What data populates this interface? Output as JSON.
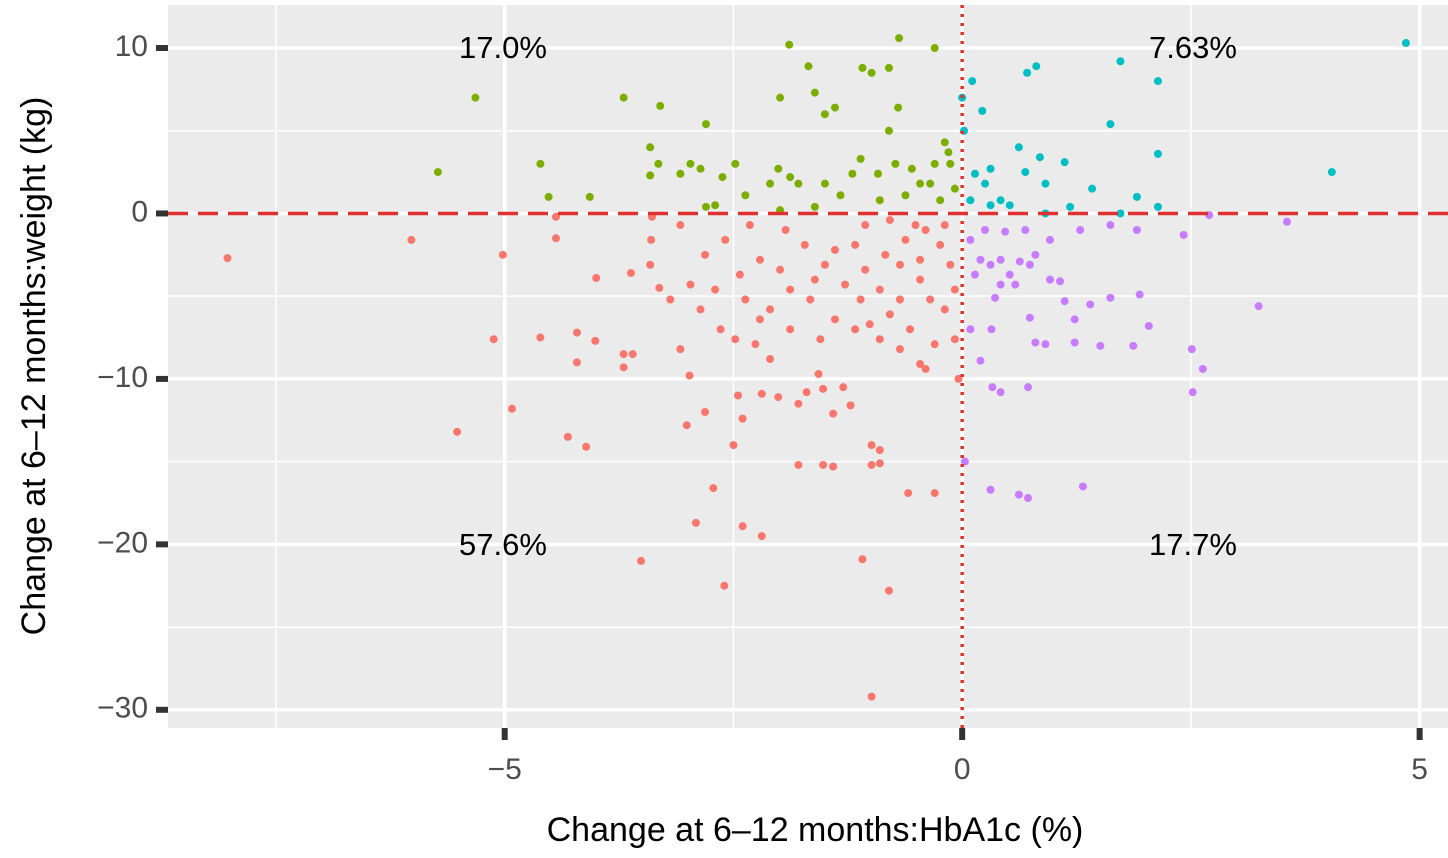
{
  "chart_data": {
    "type": "scatter",
    "x_label": "Change at 6–12 months:HbA1c (%)",
    "y_label": "Change at 6–12 months:weight (kg)",
    "xlim": [
      -8.68,
      5.31
    ],
    "ylim": [
      -31.1,
      12.6
    ],
    "xticks": [
      {
        "value": -5,
        "label": "−5"
      },
      0,
      5
    ],
    "yticks": [
      10,
      0,
      {
        "value": -10,
        "label": "−10"
      },
      {
        "value": -20,
        "label": "−20"
      },
      {
        "value": -30,
        "label": "−30"
      }
    ],
    "x_minor_grid": [
      -7.5,
      -2.5,
      2.5
    ],
    "y_minor_grid": [
      5,
      -5,
      -15,
      -25
    ],
    "grid": true,
    "hline": 0,
    "vline": 0,
    "reference_color": "#e0312e",
    "annotations": [
      "17.0%",
      "7.63%",
      "57.6%",
      "17.7%"
    ],
    "series": [
      {
        "color": "#7cae00",
        "x": [
          -5.32,
          -5.73,
          -4.61,
          -4.52,
          -4.07,
          -3.7,
          -3.3,
          -3.41,
          -3.32,
          -3.41,
          -2.8,
          -1.89,
          -1.68,
          -1.99,
          -1.61,
          -1.39,
          -1.5,
          -1.09,
          -0.99,
          -0.8,
          -0.69,
          -0.3,
          -0.7,
          -0.8,
          -0.19,
          -0.15,
          -0.13,
          -0.3,
          -2.97,
          -2.86,
          -3.08,
          -2.48,
          -2.62,
          -2.37,
          -2.01,
          -1.88,
          -2.1,
          -1.79,
          -1.5,
          -1.2,
          -1.11,
          -0.92,
          -0.73,
          -0.55,
          -0.46,
          -0.62,
          -0.9,
          -1.33,
          -1.61,
          -1.99,
          -2.8,
          -2.7,
          -0.24,
          -0.08,
          -0.35
        ],
        "y": [
          7.0,
          2.5,
          3.0,
          1.0,
          1.0,
          7.0,
          6.5,
          4.0,
          3.0,
          2.3,
          5.4,
          10.2,
          8.9,
          7.0,
          7.3,
          6.4,
          6.0,
          8.8,
          8.5,
          8.8,
          10.6,
          10.0,
          6.4,
          5.0,
          4.3,
          3.7,
          3.0,
          3.0,
          3.0,
          2.7,
          2.4,
          3.0,
          2.2,
          1.1,
          2.7,
          2.2,
          1.8,
          1.8,
          1.8,
          2.4,
          3.3,
          2.4,
          3.0,
          2.7,
          1.8,
          1.1,
          0.8,
          1.1,
          0.4,
          0.2,
          0.4,
          0.5,
          0.8,
          1.5,
          1.8
        ]
      },
      {
        "color": "#00bfc4",
        "x": [
          4.85,
          4.04,
          1.73,
          2.14,
          0.81,
          0.71,
          0.11,
          0.22,
          0.0,
          0.02,
          1.62,
          2.14,
          0.62,
          0.85,
          1.12,
          0.91,
          1.42,
          1.91,
          2.14,
          1.73,
          1.18,
          0.91,
          0.31,
          0.14,
          0.25,
          0.42,
          0.52,
          0.31,
          0.69,
          0.09
        ],
        "y": [
          10.3,
          2.5,
          9.2,
          8.0,
          8.9,
          8.5,
          8.0,
          6.2,
          7.0,
          5.0,
          5.4,
          3.6,
          4.0,
          3.4,
          3.1,
          1.8,
          1.5,
          1.0,
          0.4,
          0.0,
          0.4,
          0.0,
          2.7,
          2.4,
          1.8,
          0.8,
          0.5,
          0.5,
          2.5,
          0.8
        ]
      },
      {
        "color": "#c77cff",
        "x": [
          3.55,
          3.24,
          2.7,
          2.42,
          1.91,
          1.62,
          1.29,
          0.96,
          0.8,
          1.94,
          1.62,
          1.4,
          1.12,
          1.23,
          2.04,
          1.87,
          2.51,
          2.63,
          2.52,
          1.51,
          1.23,
          0.91,
          0.8,
          0.74,
          0.2,
          0.33,
          0.42,
          0.72,
          0.32,
          0.09,
          0.31,
          0.62,
          0.72,
          1.32,
          0.03,
          0.09,
          0.2,
          0.31,
          0.42,
          0.52,
          0.63,
          0.74,
          0.96,
          1.07,
          0.36,
          0.42,
          0.58,
          0.14,
          0.25,
          0.47,
          0.69
        ],
        "y": [
          -0.5,
          -5.6,
          -0.1,
          -1.3,
          -1.0,
          -0.7,
          -1.0,
          -1.6,
          -2.5,
          -4.9,
          -5.1,
          -5.5,
          -5.3,
          -6.4,
          -6.8,
          -8.0,
          -8.2,
          -9.4,
          -10.8,
          -8.0,
          -7.8,
          -7.9,
          -7.8,
          -6.3,
          -8.9,
          -10.5,
          -10.8,
          -10.5,
          -7.0,
          -7.0,
          -16.7,
          -17.0,
          -17.2,
          -16.5,
          -15.0,
          -1.6,
          -2.8,
          -3.1,
          -2.8,
          -3.7,
          -2.9,
          -3.1,
          -4.0,
          -4.1,
          -5.1,
          -4.3,
          -4.3,
          -3.7,
          -1.0,
          -1.1,
          -1.0
        ]
      },
      {
        "color": "#f8766d",
        "x": [
          -8.03,
          -6.02,
          -5.02,
          -5.12,
          -4.92,
          -5.52,
          -4.61,
          -4.31,
          -4.11,
          -4.21,
          -4.21,
          -4.01,
          -4.44,
          -4.44,
          -4.0,
          -3.7,
          -3.7,
          -3.51,
          -3.6,
          -3.31,
          -3.62,
          -3.4,
          -3.39,
          -2.98,
          -3.01,
          -2.91,
          -2.72,
          -2.6,
          -2.4,
          -2.19,
          -2.81,
          -2.5,
          -2.45,
          -2.4,
          -2.19,
          -2.01,
          -1.79,
          -1.52,
          -1.41,
          -1.09,
          -0.8,
          -0.99,
          -0.99,
          -0.9,
          -0.99,
          -0.9,
          -0.59,
          -0.3,
          -0.04,
          -1.79,
          -1.7,
          -1.52,
          -1.41,
          -1.22,
          -1.3,
          -1.57,
          -2.1,
          -2.26,
          -2.48,
          -3.08,
          -2.64,
          -2.86,
          -2.37,
          -2.1,
          -1.88,
          -1.66,
          -1.39,
          -1.17,
          -0.9,
          -0.68,
          -0.46,
          -0.3,
          -0.19,
          -0.08,
          -0.13,
          -0.24,
          -0.4,
          -0.62,
          -0.84,
          -1.06,
          -1.28,
          -1.5,
          -1.72,
          -1.93,
          -2.21,
          -2.43,
          -2.7,
          -2.97,
          -3.19,
          -2.81,
          -2.59,
          -2.32,
          -3.08,
          -3.41,
          -1.06,
          -0.79,
          -0.51,
          -0.19,
          -1.11,
          -0.9,
          -0.68,
          -0.46,
          -0.35,
          -0.79,
          -0.57,
          -1.01,
          -1.55,
          -1.88,
          -2.21,
          -1.39,
          -1.17,
          -1.61,
          -1.99,
          -0.68,
          -0.46,
          -0.08,
          -0.4
        ],
        "y": [
          -2.7,
          -1.6,
          -2.5,
          -7.6,
          -11.8,
          -13.2,
          -7.5,
          -13.5,
          -14.1,
          -7.2,
          -9.0,
          -7.7,
          -1.5,
          -0.2,
          -3.9,
          -8.5,
          -9.3,
          -21.0,
          -8.5,
          -4.5,
          -3.6,
          -1.6,
          -0.2,
          -9.8,
          -12.8,
          -18.7,
          -16.6,
          -22.5,
          -18.9,
          -19.5,
          -12.0,
          -14.0,
          -11.0,
          -12.4,
          -10.9,
          -11.1,
          -15.2,
          -15.2,
          -15.3,
          -20.9,
          -22.8,
          -29.2,
          -14.0,
          -14.3,
          -15.2,
          -15.1,
          -16.9,
          -16.9,
          -10.0,
          -11.5,
          -10.8,
          -10.6,
          -12.1,
          -11.6,
          -10.5,
          -9.7,
          -8.8,
          -7.9,
          -7.6,
          -8.2,
          -7.0,
          -5.8,
          -5.2,
          -5.8,
          -4.6,
          -5.2,
          -6.4,
          -7.0,
          -7.6,
          -8.2,
          -9.1,
          -7.9,
          -5.8,
          -4.6,
          -3.1,
          -1.9,
          -1.0,
          -1.6,
          -2.5,
          -3.4,
          -4.3,
          -3.1,
          -1.9,
          -1.0,
          -2.8,
          -3.7,
          -4.6,
          -4.3,
          -5.2,
          -2.5,
          -1.6,
          -0.7,
          -0.7,
          -3.1,
          -0.7,
          -0.4,
          -0.7,
          -0.7,
          -5.2,
          -4.6,
          -5.2,
          -4.0,
          -5.2,
          -6.1,
          -7.0,
          -6.7,
          -7.6,
          -7.0,
          -6.4,
          -2.2,
          -1.9,
          -4.0,
          -3.4,
          -3.1,
          -2.8,
          -7.6,
          -9.4
        ]
      }
    ]
  }
}
